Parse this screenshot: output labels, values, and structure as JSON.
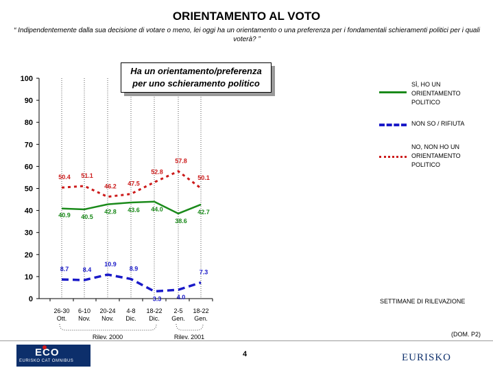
{
  "header": {
    "title": "ORIENTAMENTO AL VOTO",
    "question": "“ Indipendentemente dalla sua decisione di votare o meno, lei oggi ha un orientamento o una preferenza per i fondamentali schieramenti politici per i quali voterà? ”"
  },
  "callout": {
    "line1": "Ha un orientamento/preferenza",
    "line2": "per uno schieramento politico"
  },
  "legend": {
    "items": [
      {
        "label_lines": [
          "SÌ, HO UN",
          "ORIENTAMENTO",
          "POLITICO"
        ],
        "color": "#1a8a1a",
        "style": "solid"
      },
      {
        "label_lines": [
          "NON SO / RIFIUTA"
        ],
        "color": "#1a1ac8",
        "style": "dashed"
      },
      {
        "label_lines": [
          "NO, NON HO UN",
          "ORIENTAMENTO",
          "POLITICO"
        ],
        "color": "#cc1a1a",
        "style": "dotted"
      }
    ]
  },
  "axis_caption": "SETTIMANE DI RILEVAZIONE",
  "groups": [
    {
      "label": "Rilev. 2000"
    },
    {
      "label": "Rilev. 2001"
    }
  ],
  "footer": {
    "dom": "(DOM. P2)",
    "page_number": "4",
    "logo_left_mark": "ECO",
    "logo_left_sub": "EURISKO CAT OMNIBUS",
    "logo_right": "EURISKO"
  },
  "chart_data": {
    "type": "line",
    "categories": [
      [
        "26-30",
        "Ott."
      ],
      [
        "6-10",
        "Nov."
      ],
      [
        "20-24",
        "Nov."
      ],
      [
        "4-8",
        "Dic."
      ],
      [
        "18-22",
        "Dic."
      ],
      [
        "2-5",
        "Gen."
      ],
      [
        "18-22",
        "Gen."
      ]
    ],
    "ylim": [
      0,
      100
    ],
    "yticks": [
      0,
      10,
      20,
      30,
      40,
      50,
      60,
      70,
      80,
      90,
      100
    ],
    "series": [
      {
        "name": "SÌ, HO UN ORIENTAMENTO POLITICO",
        "values": [
          40.9,
          40.5,
          42.8,
          43.6,
          44.0,
          38.6,
          42.7
        ],
        "labels": [
          "40.9",
          "40.5",
          "42.8",
          "43.6",
          "44.0",
          "38.6",
          "42.7"
        ],
        "color": "#1a8a1a",
        "style": "solid"
      },
      {
        "name": "NON SO / RIFIUTA",
        "values": [
          8.7,
          8.4,
          10.9,
          8.9,
          3.3,
          4.0,
          7.3
        ],
        "labels": [
          "8.7",
          "8.4",
          "10.9",
          "8.9",
          "3.3",
          "4.0",
          "7.3"
        ],
        "color": "#1a1ac8",
        "style": "dashed"
      },
      {
        "name": "NO, NON HO UN ORIENTAMENTO POLITICO",
        "values": [
          50.4,
          51.1,
          46.2,
          47.5,
          52.8,
          57.8,
          50.1
        ],
        "labels": [
          "50.4",
          "51.1",
          "46.2",
          "47.5",
          "52.8",
          "57.8",
          "50.1"
        ],
        "color": "#cc1a1a",
        "style": "dotted"
      }
    ]
  }
}
